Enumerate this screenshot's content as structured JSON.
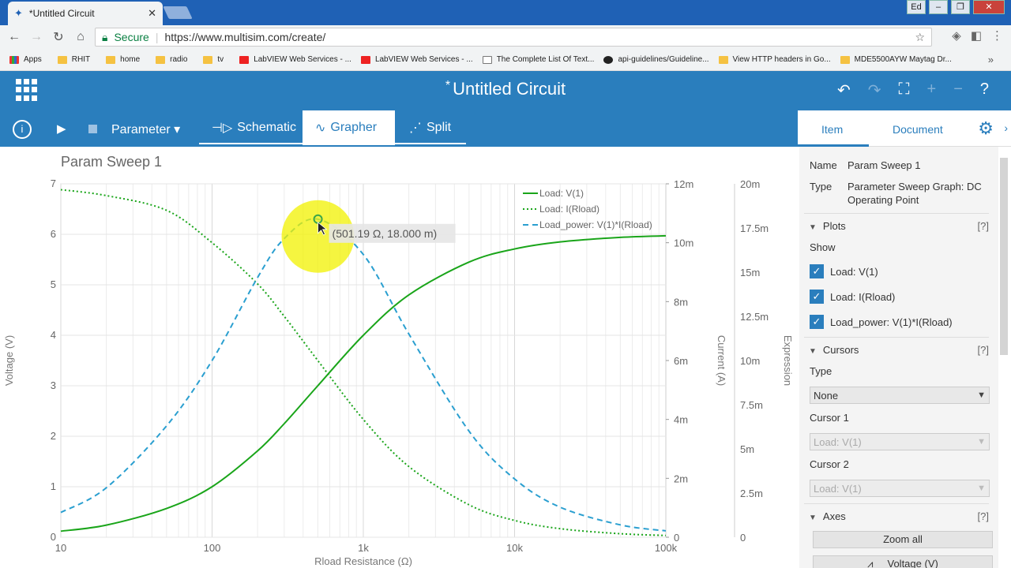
{
  "browser": {
    "tab_title": "*Untitled Circuit",
    "window_user": "Ed",
    "secure_label": "Secure",
    "url": "https://www.multisim.com/create/",
    "bookmarks": [
      "Apps",
      "RHIT",
      "home",
      "radio",
      "tv",
      "LabVIEW Web Services - ...",
      "LabVIEW Web Services - ...",
      "The Complete List Of Text...",
      "api-guidelines/Guideline...",
      "View HTTP headers in Go...",
      "MDE5500AYW Maytag Dr..."
    ]
  },
  "app": {
    "title": "Untitled Circuit",
    "unsaved_mark": "*",
    "toolbar": {
      "param_label": "Parameter",
      "tabs": [
        "Schematic",
        "Grapher",
        "Split"
      ],
      "active_tab": "Grapher"
    }
  },
  "panel": {
    "tabs": [
      "Item",
      "Document"
    ],
    "active_tab": "Item",
    "name_label": "Name",
    "name_value": "Param Sweep 1",
    "type_label": "Type",
    "type_value": "Parameter Sweep Graph: DC Operating Point",
    "plots_header": "Plots",
    "help": "[?]",
    "show_label": "Show",
    "plots": [
      "Load: V(1)",
      "Load: I(Rload)",
      "Load_power: V(1)*I(Rload)"
    ],
    "cursors_header": "Cursors",
    "cursor_type_label": "Type",
    "cursor_type_value": "None",
    "cursor1_label": "Cursor 1",
    "cursor1_value": "Load: V(1)",
    "cursor2_label": "Cursor 2",
    "cursor2_value": "Load: V(1)",
    "axes_header": "Axes",
    "zoom_all": "Zoom all",
    "voltage_btn": "Voltage (V)"
  },
  "chart_data": {
    "type": "line",
    "title": "Param Sweep 1",
    "xlabel": "Rload Resistance (Ω)",
    "xscale": "log",
    "xlim": [
      10,
      100000
    ],
    "xticks": [
      "10",
      "100",
      "1k",
      "10k",
      "100k"
    ],
    "y_axes": [
      {
        "label": "Voltage (V)",
        "lim": [
          0,
          7
        ],
        "ticks": [
          "0",
          "1",
          "2",
          "3",
          "4",
          "5",
          "6",
          "7"
        ]
      },
      {
        "label": "Current (A)",
        "lim": [
          0,
          0.012
        ],
        "ticks": [
          "0",
          "2m",
          "4m",
          "6m",
          "8m",
          "10m",
          "12m"
        ]
      },
      {
        "label": "Expression",
        "lim": [
          0,
          0.02
        ],
        "ticks": [
          "0",
          "2.5m",
          "5m",
          "7.5m",
          "10m",
          "12.5m",
          "15m",
          "17.5m",
          "20m"
        ]
      }
    ],
    "legend_position": "top-right",
    "grid": true,
    "tooltip": "(501.19 Ω, 18.000 m)",
    "tooltip_point": {
      "x": 501.19,
      "y": 0.018
    },
    "series": [
      {
        "name": "Load: V(1)",
        "axis": 0,
        "style": "solid",
        "color": "#1aa51a",
        "x": [
          10,
          20,
          50,
          100,
          200,
          300,
          500,
          1000,
          2000,
          5000,
          10000,
          20000,
          50000,
          100000
        ],
        "y": [
          0.12,
          0.24,
          0.57,
          1.0,
          1.71,
          2.25,
          3.0,
          4.0,
          4.8,
          5.45,
          5.71,
          5.85,
          5.94,
          5.97
        ]
      },
      {
        "name": "Load: I(Rload)",
        "axis": 1,
        "style": "dotted",
        "color": "#1aa51a",
        "x": [
          10,
          20,
          50,
          100,
          200,
          300,
          500,
          1000,
          2000,
          5000,
          10000,
          20000,
          50000,
          100000
        ],
        "y": [
          0.0118,
          0.0116,
          0.0111,
          0.01,
          0.0086,
          0.0075,
          0.006,
          0.004,
          0.0024,
          0.0011,
          0.00057,
          0.00029,
          0.00012,
          6e-05
        ]
      },
      {
        "name": "Load_power: V(1)*I(Rload)",
        "axis": 2,
        "style": "dashed",
        "color": "#2a9fd0",
        "x": [
          10,
          20,
          50,
          100,
          200,
          300,
          500,
          1000,
          2000,
          5000,
          10000,
          20000,
          50000,
          100000
        ],
        "y": [
          0.0014,
          0.0028,
          0.0063,
          0.01,
          0.0147,
          0.0169,
          0.018,
          0.016,
          0.0115,
          0.006,
          0.0033,
          0.0017,
          0.0007,
          0.00036
        ]
      }
    ]
  }
}
